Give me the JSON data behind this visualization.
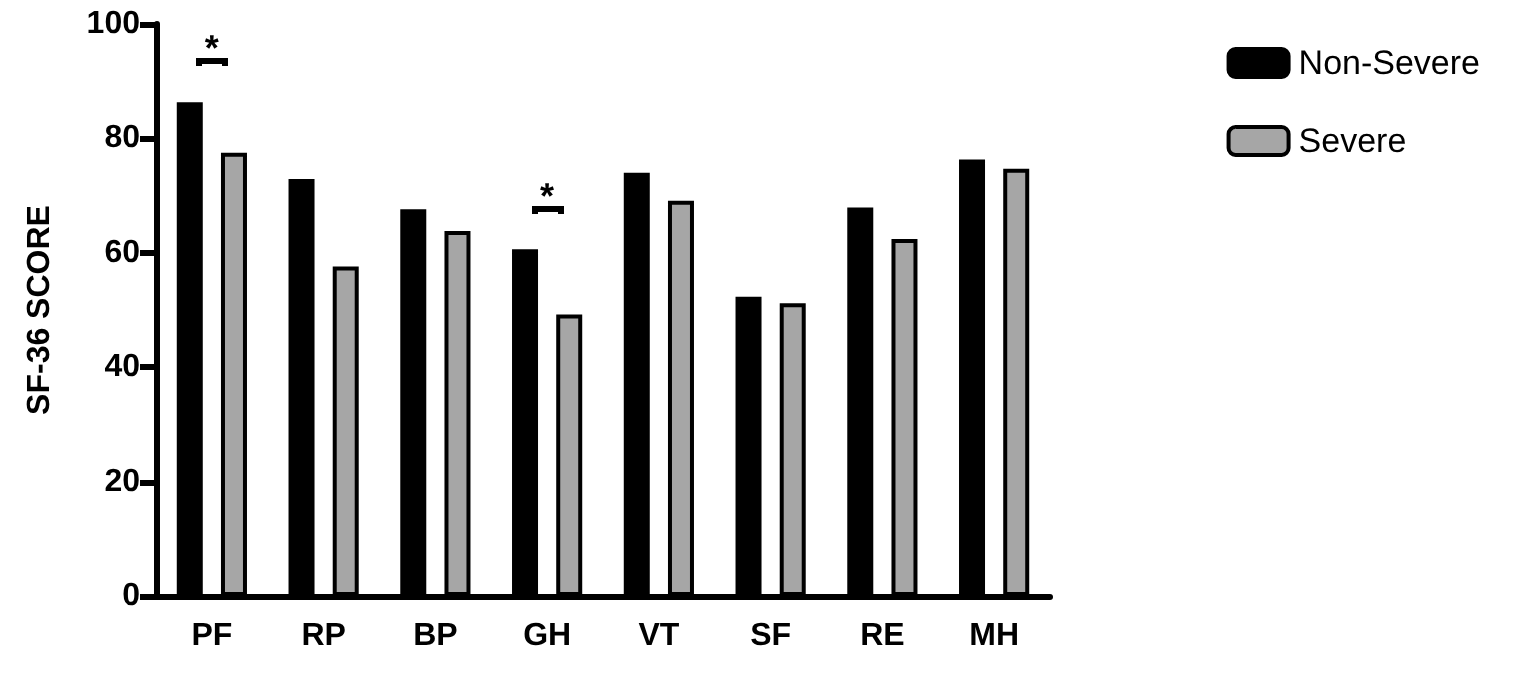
{
  "chart_data": {
    "type": "bar",
    "ylabel": "SF-36 SCORE",
    "categories": [
      "PF",
      "RP",
      "BP",
      "GH",
      "VT",
      "SF",
      "RE",
      "MH"
    ],
    "series": [
      {
        "name": "Non-Severe",
        "color": "#000000",
        "values": [
          86.3,
          72.9,
          67.6,
          60.6,
          74.0,
          52.3,
          67.9,
          76.3
        ]
      },
      {
        "name": "Severe",
        "color": "#a6a6a6",
        "values": [
          77.5,
          57.6,
          63.8,
          49.2,
          69.1,
          51.2,
          62.4,
          74.7
        ]
      }
    ],
    "annotations": [
      "*",
      "*"
    ],
    "ylim": [
      0,
      100
    ],
    "yticks": [
      0,
      20,
      40,
      60,
      80,
      100
    ],
    "grid": false,
    "legend": "top right"
  }
}
